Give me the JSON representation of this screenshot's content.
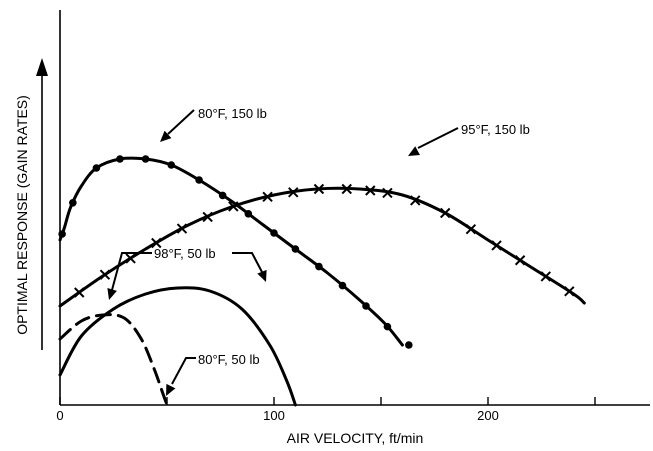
{
  "chart_data": {
    "type": "line",
    "xlabel": "AIR VELOCITY, ft/min",
    "ylabel": "OPTIMAL RESPONSE (GAIN RATES)",
    "xlim": [
      0,
      270
    ],
    "ylim": [
      0,
      100
    ],
    "x_ticks": [
      0,
      100,
      200
    ],
    "x_minor_ticks": [
      50,
      150,
      250
    ],
    "grid": false,
    "series": [
      {
        "name": "80°F, 150 lb",
        "marker": "dot",
        "line_style": "solid",
        "values": [
          [
            0,
            55
          ],
          [
            2,
            59
          ],
          [
            5,
            66
          ],
          [
            10,
            73
          ],
          [
            17,
            79
          ],
          [
            28,
            82
          ],
          [
            40,
            82
          ],
          [
            52,
            80
          ],
          [
            65,
            75
          ],
          [
            80,
            68
          ],
          [
            95,
            60
          ],
          [
            110,
            52
          ],
          [
            125,
            44
          ],
          [
            140,
            35
          ],
          [
            152,
            27
          ],
          [
            160,
            20
          ]
        ],
        "markers_x": [
          1,
          6,
          17,
          28,
          40,
          52,
          65,
          76,
          88,
          100,
          110,
          121,
          132,
          143,
          153,
          163
        ]
      },
      {
        "name": "95°F, 150 lb",
        "marker": "x",
        "line_style": "solid",
        "values": [
          [
            0,
            33
          ],
          [
            20,
            43
          ],
          [
            40,
            52
          ],
          [
            60,
            60
          ],
          [
            80,
            66
          ],
          [
            100,
            70
          ],
          [
            120,
            72
          ],
          [
            140,
            72
          ],
          [
            160,
            70
          ],
          [
            180,
            64
          ],
          [
            200,
            55
          ],
          [
            220,
            46
          ],
          [
            240,
            37
          ],
          [
            245,
            34
          ]
        ],
        "markers_x": [
          9,
          21,
          33,
          45,
          57,
          69,
          81,
          97,
          109,
          121,
          134,
          145,
          153,
          166,
          180,
          192,
          204,
          215,
          227,
          238
        ]
      },
      {
        "name": "98°F, 50 lb",
        "marker": "none",
        "line_style": "solid",
        "values": [
          [
            0,
            10
          ],
          [
            10,
            23
          ],
          [
            25,
            32
          ],
          [
            40,
            37
          ],
          [
            55,
            39
          ],
          [
            70,
            38
          ],
          [
            85,
            32
          ],
          [
            98,
            20
          ],
          [
            106,
            8
          ],
          [
            110,
            0
          ]
        ]
      },
      {
        "name": "80°F, 50 lb",
        "marker": "none",
        "line_style": "dashed",
        "values": [
          [
            0,
            22
          ],
          [
            10,
            28
          ],
          [
            20,
            30
          ],
          [
            30,
            29
          ],
          [
            38,
            22
          ],
          [
            44,
            12
          ],
          [
            48,
            4
          ],
          [
            50,
            0
          ]
        ]
      }
    ],
    "annotations": [
      "80°F, 150 lb",
      "95°F, 150 lb",
      "98°F, 50 lb",
      "80°F, 50 lb"
    ]
  }
}
